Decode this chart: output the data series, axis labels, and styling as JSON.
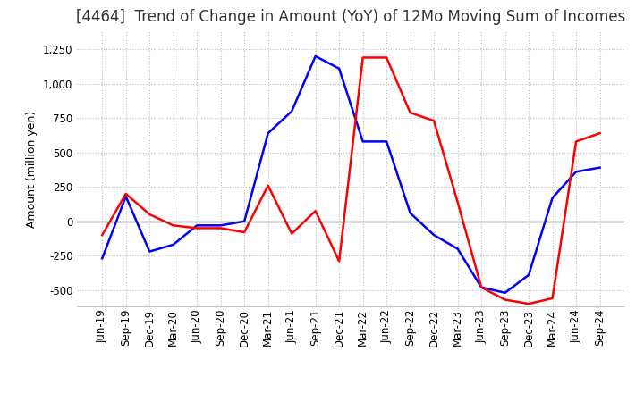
{
  "title": "[4464]  Trend of Change in Amount (YoY) of 12Mo Moving Sum of Incomes",
  "ylabel": "Amount (million yen)",
  "ylim": [
    -620,
    1380
  ],
  "yticks": [
    -500,
    -250,
    0,
    250,
    500,
    750,
    1000,
    1250
  ],
  "x_labels": [
    "Jun-19",
    "Sep-19",
    "Dec-19",
    "Mar-20",
    "Jun-20",
    "Sep-20",
    "Dec-20",
    "Mar-21",
    "Jun-21",
    "Sep-21",
    "Dec-21",
    "Mar-22",
    "Jun-22",
    "Sep-22",
    "Dec-22",
    "Mar-23",
    "Jun-23",
    "Sep-23",
    "Dec-23",
    "Mar-24",
    "Jun-24",
    "Sep-24"
  ],
  "ordinary_income": [
    -270,
    180,
    -220,
    -170,
    -30,
    -30,
    0,
    640,
    800,
    1200,
    1110,
    580,
    580,
    60,
    -100,
    -200,
    -480,
    -520,
    -390,
    170,
    360,
    390
  ],
  "net_income": [
    -100,
    200,
    50,
    -30,
    -50,
    -50,
    -80,
    260,
    -90,
    75,
    -290,
    1190,
    1190,
    790,
    730,
    140,
    -480,
    -570,
    -600,
    -560,
    580,
    640
  ],
  "ordinary_color": "#0000FF",
  "net_color": "#FF0000",
  "grid_color": "#BBBBBB",
  "zero_line_color": "#555555",
  "background_color": "#FFFFFF",
  "title_fontsize": 12,
  "label_fontsize": 9,
  "tick_fontsize": 8.5
}
